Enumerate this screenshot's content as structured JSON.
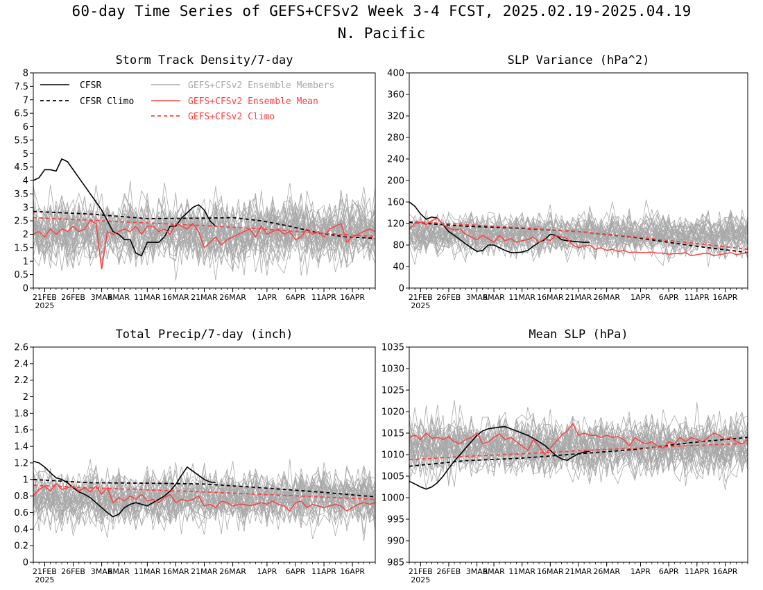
{
  "figure": {
    "title_line1": "60-day Time Series of GEFS+CFSv2 Week 3-4 FCST, 2025.02.19-2025.04.19",
    "title_line2": "N. Pacific"
  },
  "legend": {
    "cfsr": "CFSR",
    "cfsr_climo": "CFSR Climo",
    "members": "GEFS+CFSv2 Ensemble Members",
    "mean": "GEFS+CFSv2 Ensemble Mean",
    "climo": "GEFS+CFSv2 Climo"
  },
  "colors": {
    "cfsr": "#000000",
    "members": "#a8a8a8",
    "mean": "#ff4040"
  },
  "x_axis": {
    "tick_labels": [
      "21FEB",
      "26FEB",
      "3MAR",
      "6MAR",
      "11MAR",
      "16MAR",
      "21MAR",
      "26MAR",
      "1APR",
      "6APR",
      "11APR",
      "16APR"
    ],
    "tick_days": [
      2,
      7,
      12,
      15,
      20,
      25,
      30,
      35,
      41,
      46,
      51,
      56
    ],
    "year_label": "2025",
    "days": 60
  },
  "chart_data": [
    {
      "type": "line",
      "title": "Storm Track Density/7-day",
      "ylim": [
        0,
        8
      ],
      "yticks": [
        "0",
        "0.5",
        "1",
        "1.5",
        "2",
        "2.5",
        "3",
        "3.5",
        "4",
        "4.5",
        "5",
        "5.5",
        "6",
        "6.5",
        "7",
        "7.5",
        "8"
      ],
      "member_band": {
        "center": 2.1,
        "spread": 1.1
      },
      "series": [
        {
          "name": "CFSR",
          "x": [
            0,
            1,
            2,
            3,
            4,
            5,
            6,
            7,
            8,
            9,
            10,
            11,
            12,
            13,
            14,
            15,
            16,
            17,
            18,
            19,
            20,
            21,
            22,
            23,
            24,
            25,
            26,
            27,
            28,
            29,
            30,
            31,
            32
          ],
          "values": [
            4.0,
            4.1,
            4.4,
            4.4,
            4.35,
            4.8,
            4.7,
            4.4,
            4.1,
            3.8,
            3.5,
            3.2,
            2.9,
            2.5,
            2.1,
            2.0,
            1.8,
            1.8,
            1.3,
            1.2,
            1.7,
            1.7,
            1.7,
            1.9,
            2.3,
            2.3,
            2.6,
            2.8,
            3.0,
            3.1,
            2.9,
            2.5,
            2.3
          ]
        },
        {
          "name": "CFSR Climo",
          "x": [
            0,
            10,
            20,
            30,
            35,
            40,
            45,
            50,
            55,
            60
          ],
          "values": [
            2.85,
            2.75,
            2.58,
            2.6,
            2.62,
            2.5,
            2.3,
            2.05,
            1.9,
            1.85
          ]
        },
        {
          "name": "GEFS+CFSv2 Ensemble Mean",
          "x": [
            0,
            1,
            2,
            3,
            4,
            5,
            6,
            7,
            8,
            9,
            10,
            11,
            12,
            13,
            14,
            15,
            16,
            17,
            18,
            19,
            20,
            21,
            22,
            23,
            24,
            25,
            26,
            27,
            28,
            29,
            30,
            31,
            32,
            33,
            34,
            35,
            36,
            37,
            38,
            39,
            40,
            41,
            42,
            43,
            44,
            45,
            46,
            47,
            48,
            49,
            50,
            51,
            52,
            53,
            54,
            55,
            56,
            57,
            58,
            59,
            60
          ],
          "values": [
            2.0,
            2.1,
            1.9,
            2.2,
            2.0,
            2.2,
            2.1,
            2.3,
            2.1,
            2.2,
            2.5,
            2.4,
            0.7,
            2.1,
            2.0,
            2.1,
            2.2,
            2.1,
            2.3,
            2.0,
            2.3,
            2.3,
            2.1,
            2.2,
            2.0,
            2.4,
            2.3,
            2.2,
            2.4,
            2.1,
            1.5,
            1.7,
            1.9,
            1.6,
            1.8,
            1.9,
            2.0,
            2.1,
            2.2,
            1.9,
            2.3,
            2.0,
            2.1,
            2.2,
            2.0,
            2.1,
            1.8,
            1.9,
            2.2,
            2.0,
            2.1,
            1.9,
            2.2,
            2.3,
            2.4,
            1.7,
            1.9,
            2.0,
            2.1,
            2.2,
            2.1
          ]
        },
        {
          "name": "GEFS+CFSv2 Climo",
          "x": [
            0,
            10,
            20,
            30,
            40,
            50,
            60
          ],
          "values": [
            2.62,
            2.52,
            2.42,
            2.32,
            2.2,
            2.05,
            1.92
          ]
        }
      ]
    },
    {
      "type": "line",
      "title": "SLP Variance (hPa^2)",
      "ylim": [
        0,
        400
      ],
      "yticks": [
        "0",
        "40",
        "80",
        "120",
        "160",
        "200",
        "240",
        "280",
        "320",
        "360",
        "400"
      ],
      "member_band": {
        "center": 100,
        "spread": 35
      },
      "series": [
        {
          "name": "CFSR",
          "x": [
            0,
            1,
            2,
            3,
            4,
            5,
            6,
            7,
            8,
            9,
            10,
            11,
            12,
            13,
            14,
            15,
            16,
            17,
            18,
            19,
            20,
            21,
            22,
            23,
            24,
            25,
            26,
            27,
            28,
            29,
            30,
            31,
            32
          ],
          "values": [
            160,
            152,
            138,
            128,
            132,
            130,
            118,
            105,
            98,
            90,
            82,
            75,
            68,
            70,
            80,
            80,
            75,
            70,
            66,
            66,
            67,
            70,
            78,
            85,
            90,
            100,
            98,
            90,
            88,
            87,
            86,
            85,
            85
          ]
        },
        {
          "name": "CFSR Climo",
          "x": [
            0,
            10,
            20,
            30,
            40,
            50,
            60
          ],
          "values": [
            122,
            115,
            111,
            105,
            94,
            79,
            66
          ]
        },
        {
          "name": "GEFS+CFSv2 Ensemble Mean",
          "x": [
            0,
            1,
            2,
            3,
            4,
            5,
            6,
            7,
            8,
            9,
            10,
            11,
            12,
            13,
            14,
            15,
            16,
            17,
            18,
            19,
            20,
            21,
            22,
            23,
            24,
            25,
            26,
            27,
            28,
            29,
            30,
            31,
            32,
            33,
            34,
            35,
            36,
            37,
            38,
            39,
            40,
            41,
            42,
            43,
            44,
            45,
            46,
            47,
            48,
            49,
            50,
            51,
            52,
            53,
            54,
            55,
            56,
            57,
            58,
            59,
            60
          ],
          "values": [
            110,
            120,
            122,
            118,
            125,
            130,
            118,
            112,
            108,
            110,
            100,
            95,
            90,
            98,
            92,
            85,
            98,
            88,
            92,
            85,
            88,
            90,
            95,
            85,
            92,
            88,
            98,
            95,
            92,
            80,
            75,
            78,
            80,
            72,
            75,
            70,
            72,
            68,
            70,
            66,
            67,
            66,
            66,
            67,
            65,
            65,
            63,
            64,
            64,
            66,
            60,
            62,
            64,
            65,
            60,
            62,
            64,
            66,
            62,
            64,
            66
          ]
        },
        {
          "name": "GEFS+CFSv2 Climo",
          "x": [
            0,
            10,
            20,
            30,
            40,
            50,
            60
          ],
          "values": [
            124,
            118,
            112,
            105,
            95,
            84,
            72
          ]
        }
      ]
    },
    {
      "type": "line",
      "title": "Total Precip/7-day (inch)",
      "ylim": [
        0,
        2.6
      ],
      "yticks": [
        "0",
        "0.2",
        "0.4",
        "0.6",
        "0.8",
        "1",
        "1.2",
        "1.4",
        "1.6",
        "1.8",
        "2",
        "2.2",
        "2.4",
        "2.6"
      ],
      "member_band": {
        "center": 0.78,
        "spread": 0.3
      },
      "series": [
        {
          "name": "CFSR",
          "x": [
            0,
            1,
            2,
            3,
            4,
            5,
            6,
            7,
            8,
            9,
            10,
            11,
            12,
            13,
            14,
            15,
            16,
            17,
            18,
            19,
            20,
            21,
            22,
            23,
            24,
            25,
            26,
            27,
            28,
            29,
            30,
            31,
            32
          ],
          "values": [
            1.22,
            1.2,
            1.15,
            1.08,
            1.02,
            1.0,
            0.96,
            0.9,
            0.85,
            0.82,
            0.78,
            0.72,
            0.66,
            0.6,
            0.55,
            0.58,
            0.66,
            0.7,
            0.72,
            0.7,
            0.68,
            0.72,
            0.76,
            0.8,
            0.86,
            0.94,
            1.05,
            1.15,
            1.1,
            1.05,
            1.0,
            0.97,
            0.96
          ]
        },
        {
          "name": "CFSR Climo",
          "x": [
            0,
            10,
            20,
            30,
            40,
            50,
            60
          ],
          "values": [
            1.0,
            0.96,
            0.955,
            0.945,
            0.9,
            0.85,
            0.79
          ]
        },
        {
          "name": "GEFS+CFSv2 Ensemble Mean",
          "x": [
            0,
            1,
            2,
            3,
            4,
            5,
            6,
            7,
            8,
            9,
            10,
            11,
            12,
            13,
            14,
            15,
            16,
            17,
            18,
            19,
            20,
            21,
            22,
            23,
            24,
            25,
            26,
            27,
            28,
            29,
            30,
            31,
            32,
            33,
            34,
            35,
            36,
            37,
            38,
            39,
            40,
            41,
            42,
            43,
            44,
            45,
            46,
            47,
            48,
            49,
            50,
            51,
            52,
            53,
            54,
            55,
            56,
            57,
            58,
            59,
            60
          ],
          "values": [
            0.8,
            0.88,
            0.92,
            0.86,
            0.95,
            0.88,
            0.9,
            0.92,
            0.86,
            0.9,
            0.85,
            0.92,
            0.82,
            0.9,
            0.72,
            0.78,
            0.74,
            0.8,
            0.76,
            0.82,
            0.74,
            0.76,
            0.72,
            0.78,
            0.82,
            0.72,
            0.76,
            0.74,
            0.76,
            0.8,
            0.68,
            0.7,
            0.66,
            0.74,
            0.72,
            0.68,
            0.7,
            0.7,
            0.68,
            0.7,
            0.72,
            0.7,
            0.74,
            0.7,
            0.68,
            0.62,
            0.72,
            0.74,
            0.66,
            0.7,
            0.68,
            0.66,
            0.68,
            0.7,
            0.68,
            0.62,
            0.66,
            0.7,
            0.72,
            0.7,
            0.72
          ]
        },
        {
          "name": "GEFS+CFSv2 Climo",
          "x": [
            0,
            10,
            20,
            30,
            40,
            50,
            60
          ],
          "values": [
            0.93,
            0.9,
            0.875,
            0.85,
            0.82,
            0.79,
            0.76
          ]
        }
      ]
    },
    {
      "type": "line",
      "title": "Mean SLP (hPa)",
      "ylim": [
        985,
        1035
      ],
      "yticks": [
        "985",
        "990",
        "995",
        "1000",
        "1005",
        "1010",
        "1015",
        "1020",
        "1025",
        "1030",
        "1035"
      ],
      "member_band": {
        "center": 1012,
        "spread": 6
      },
      "series": [
        {
          "name": "CFSR",
          "x": [
            0,
            1,
            2,
            3,
            4,
            5,
            6,
            7,
            8,
            9,
            10,
            11,
            12,
            13,
            14,
            15,
            16,
            17,
            18,
            19,
            20,
            21,
            22,
            23,
            24,
            25,
            26,
            27,
            28,
            29,
            30,
            31,
            32
          ],
          "values": [
            1003.8,
            1003.2,
            1002.5,
            1002.0,
            1002.5,
            1003.5,
            1005.0,
            1006.8,
            1008.5,
            1010.0,
            1011.5,
            1013.0,
            1014.5,
            1015.5,
            1016.0,
            1016.2,
            1016.4,
            1016.5,
            1016.0,
            1015.5,
            1015.0,
            1014.5,
            1013.8,
            1013.0,
            1012.2,
            1011.0,
            1009.8,
            1009.0,
            1008.7,
            1009.5,
            1010.2,
            1010.6,
            1010.8
          ]
        },
        {
          "name": "CFSR Climo",
          "x": [
            0,
            10,
            20,
            30,
            40,
            50,
            60
          ],
          "values": [
            1007.3,
            1008.6,
            1009.2,
            1010.2,
            1011.2,
            1012.8,
            1014.0
          ]
        },
        {
          "name": "GEFS+CFSv2 Ensemble Mean",
          "x": [
            0,
            1,
            2,
            3,
            4,
            5,
            6,
            7,
            8,
            9,
            10,
            11,
            12,
            13,
            14,
            15,
            16,
            17,
            18,
            19,
            20,
            21,
            22,
            23,
            24,
            25,
            26,
            27,
            28,
            29,
            30,
            31,
            32,
            33,
            34,
            35,
            36,
            37,
            38,
            39,
            40,
            41,
            42,
            43,
            44,
            45,
            46,
            47,
            48,
            49,
            50,
            51,
            52,
            53,
            54,
            55,
            56,
            57,
            58,
            59,
            60
          ],
          "values": [
            1014.0,
            1014.5,
            1013.5,
            1015.0,
            1013.8,
            1014.0,
            1013.5,
            1014.2,
            1013.0,
            1012.5,
            1013.5,
            1014.0,
            1015.0,
            1012.5,
            1013.0,
            1014.0,
            1014.8,
            1013.5,
            1014.0,
            1013.0,
            1012.0,
            1011.0,
            1013.5,
            1012.0,
            1010.0,
            1011.5,
            1013.0,
            1014.5,
            1015.5,
            1017.2,
            1014.5,
            1015.0,
            1014.5,
            1014.5,
            1014.0,
            1014.5,
            1014.0,
            1014.2,
            1013.5,
            1012.0,
            1014.0,
            1013.0,
            1012.5,
            1013.0,
            1012.0,
            1011.5,
            1013.0,
            1012.5,
            1014.0,
            1013.0,
            1014.0,
            1013.5,
            1013.0,
            1014.0,
            1015.0,
            1014.5,
            1013.5,
            1014.0,
            1013.0,
            1012.5,
            1013.5
          ]
        },
        {
          "name": "GEFS+CFSv2 Climo",
          "x": [
            0,
            10,
            20,
            30,
            40,
            50,
            60
          ],
          "values": [
            1008.8,
            1009.6,
            1010.2,
            1010.9,
            1011.5,
            1012.1,
            1012.6
          ]
        }
      ]
    }
  ]
}
